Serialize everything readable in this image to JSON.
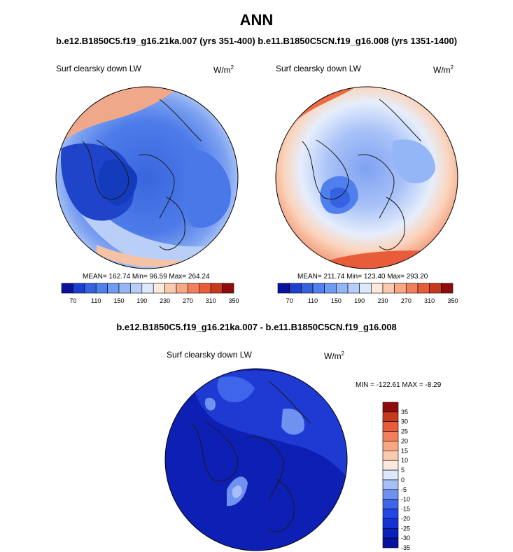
{
  "title": "ANN",
  "subtitle_top": "b.e12.B1850C5.f19_g16.21ka.007 (yrs 351-400)  b.e11.B1850C5CN.f19_g16.008 (yrs 1351-1400)",
  "subtitle_diff": "b.e12.B1850C5.f19_g16.21ka.007 - b.e11.B1850C5CN.f19_g16.008",
  "colors": {
    "abs_scale": [
      "#08129e",
      "#1c3fcf",
      "#3462e0",
      "#4f80ee",
      "#6f9cf3",
      "#93b6f6",
      "#b7cefa",
      "#dce8fc",
      "#fce8dc",
      "#fbcaae",
      "#f8a783",
      "#f2805c",
      "#e85c3a",
      "#c8381c",
      "#8e0c0c"
    ],
    "diff_scale": [
      "#08129e",
      "#0a22bb",
      "#1432d6",
      "#2447e3",
      "#3f65ea",
      "#6f91f0",
      "#a7bff7",
      "#dce8fc",
      "#fce8dc",
      "#fbcaae",
      "#f8a783",
      "#f2805c",
      "#e85c3a",
      "#c8381c",
      "#8e0c0c"
    ]
  },
  "panels": [
    {
      "label": "Surf clearsky down LW",
      "unit_base": "W/m",
      "unit_exp": "2",
      "stats": "MEAN= 162.74  Min=  96.59  Max= 264.24"
    },
    {
      "label": "Surf clearsky down LW",
      "unit_base": "W/m",
      "unit_exp": "2",
      "stats": "MEAN= 211.74  Min= 123.40  Max= 293.20"
    },
    {
      "label": "Surf clearsky down LW",
      "unit_base": "W/m",
      "unit_exp": "2",
      "stats": "MIN = -122.61  MAX =  -8.29"
    }
  ],
  "colorbar_abs": {
    "ticks": [
      "70",
      "110",
      "150",
      "190",
      "230",
      "270",
      "310",
      "350"
    ]
  },
  "colorbar_diff": {
    "ticks": [
      "35",
      "30",
      "25",
      "20",
      "15",
      "10",
      "5",
      "0",
      "-5",
      "-10",
      "-15",
      "-20",
      "-25",
      "-30",
      "-35"
    ]
  },
  "chart_data": [
    {
      "type": "heatmap",
      "projection": "north polar stereographic",
      "title": "Surf clearsky down LW",
      "units": "W/m2",
      "mean": 162.74,
      "min": 96.59,
      "max": 264.24,
      "levels": [
        70,
        90,
        110,
        130,
        150,
        170,
        190,
        210,
        230,
        250,
        270,
        290,
        310,
        330,
        350
      ]
    },
    {
      "type": "heatmap",
      "projection": "north polar stereographic",
      "title": "Surf clearsky down LW",
      "units": "W/m2",
      "mean": 211.74,
      "min": 123.4,
      "max": 293.2,
      "levels": [
        70,
        90,
        110,
        130,
        150,
        170,
        190,
        210,
        230,
        250,
        270,
        290,
        310,
        330,
        350
      ]
    },
    {
      "type": "heatmap",
      "projection": "north polar stereographic",
      "title": "Surf clearsky down LW",
      "units": "W/m2",
      "min": -122.61,
      "max": -8.29,
      "levels": [
        -35,
        -30,
        -25,
        -20,
        -15,
        -10,
        -5,
        0,
        5,
        10,
        15,
        20,
        25,
        30,
        35
      ]
    }
  ]
}
